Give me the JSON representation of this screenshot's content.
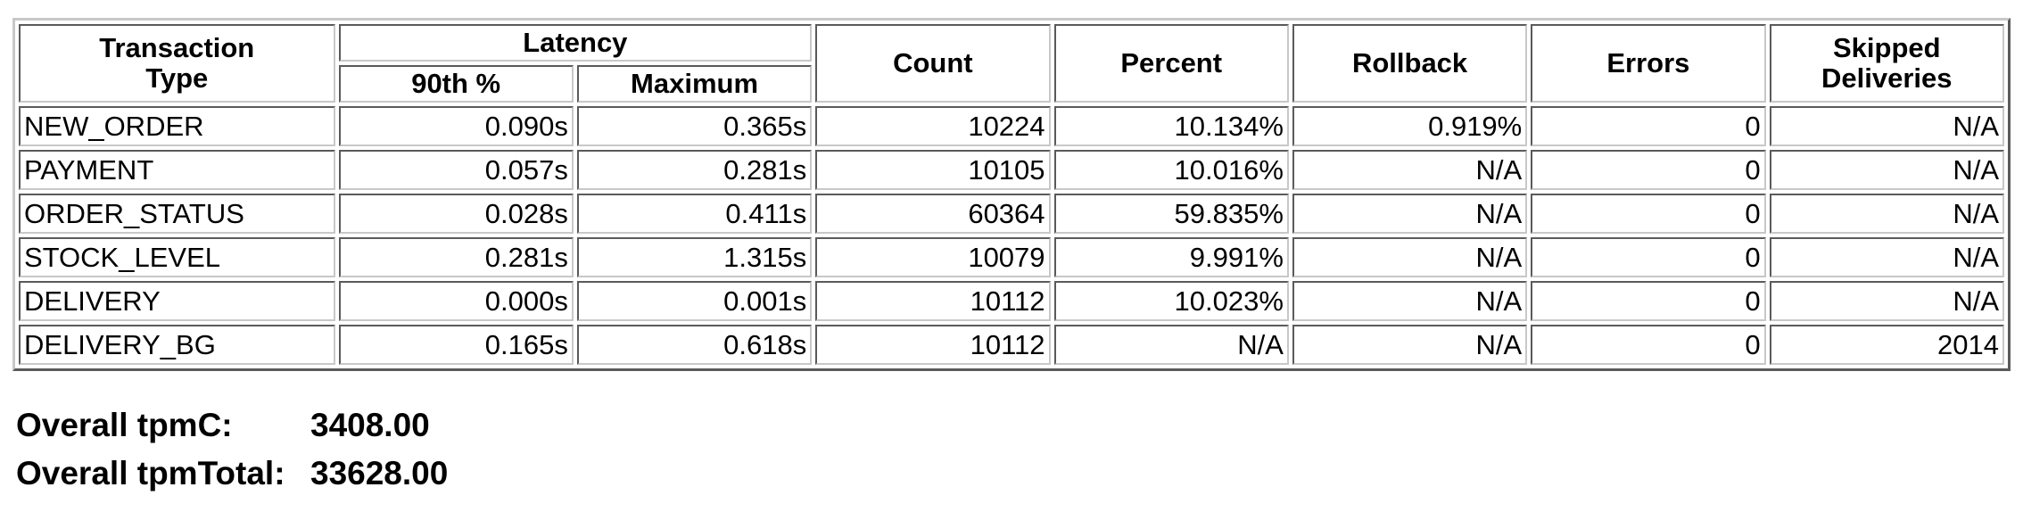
{
  "table": {
    "headers": {
      "transaction_type": [
        "Transaction",
        "Type"
      ],
      "latency": "Latency",
      "latency_90th": "90th %",
      "latency_max": "Maximum",
      "count": "Count",
      "percent": "Percent",
      "rollback": "Rollback",
      "errors": "Errors",
      "skipped": [
        "Skipped",
        "Deliveries"
      ]
    },
    "rows": [
      {
        "type": "NEW_ORDER",
        "p90": "0.090s",
        "max": "0.365s",
        "count": "10224",
        "percent": "10.134%",
        "rollback": "0.919%",
        "errors": "0",
        "skipped": "N/A"
      },
      {
        "type": "PAYMENT",
        "p90": "0.057s",
        "max": "0.281s",
        "count": "10105",
        "percent": "10.016%",
        "rollback": "N/A",
        "errors": "0",
        "skipped": "N/A"
      },
      {
        "type": "ORDER_STATUS",
        "p90": "0.028s",
        "max": "0.411s",
        "count": "60364",
        "percent": "59.835%",
        "rollback": "N/A",
        "errors": "0",
        "skipped": "N/A"
      },
      {
        "type": "STOCK_LEVEL",
        "p90": "0.281s",
        "max": "1.315s",
        "count": "10079",
        "percent": "9.991%",
        "rollback": "N/A",
        "errors": "0",
        "skipped": "N/A"
      },
      {
        "type": "DELIVERY",
        "p90": "0.000s",
        "max": "0.001s",
        "count": "10112",
        "percent": "10.023%",
        "rollback": "N/A",
        "errors": "0",
        "skipped": "N/A"
      },
      {
        "type": "DELIVERY_BG",
        "p90": "0.165s",
        "max": "0.618s",
        "count": "10112",
        "percent": "N/A",
        "rollback": "N/A",
        "errors": "0",
        "skipped": "2014"
      }
    ]
  },
  "summary": {
    "tpmc_label": "Overall tpmC:",
    "tpmc_value": "3408.00",
    "tpmtotal_label": "Overall tpmTotal:",
    "tpmtotal_value": "33628.00"
  }
}
